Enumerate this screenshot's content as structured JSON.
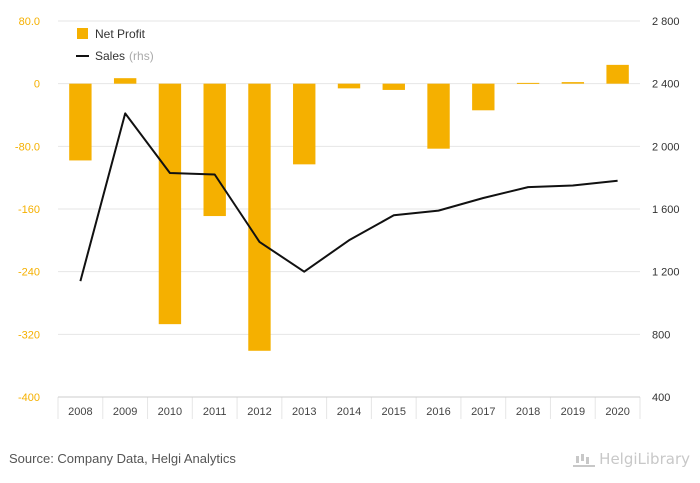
{
  "chart_data": {
    "type": "bar",
    "categories": [
      "2008",
      "2009",
      "2010",
      "2011",
      "2012",
      "2013",
      "2014",
      "2015",
      "2016",
      "2017",
      "2018",
      "2019",
      "2020"
    ],
    "series": [
      {
        "name": "Net Profit",
        "type": "bar",
        "axis": "left",
        "color": "#f5b000",
        "values": [
          -98,
          7,
          -307,
          -169,
          -341,
          -103,
          -6,
          -8,
          -83,
          -34,
          1,
          2,
          24
        ]
      },
      {
        "name": "Sales",
        "legend_suffix": "(rhs)",
        "type": "line",
        "axis": "right",
        "color": "#111111",
        "values": [
          1140,
          2210,
          1830,
          1820,
          1390,
          1200,
          1400,
          1560,
          1590,
          1670,
          1740,
          1750,
          1780
        ]
      }
    ],
    "y_left": {
      "min": -400,
      "max": 80,
      "ticks": [
        "80.0",
        "0",
        "-80.0",
        "-160",
        "-240",
        "-320",
        "-400"
      ],
      "tick_values": [
        80,
        0,
        -80,
        -160,
        -240,
        -320,
        -400
      ]
    },
    "y_right": {
      "min": 400,
      "max": 2800,
      "ticks": [
        "2 800",
        "2 400",
        "2 000",
        "1 600",
        "1 200",
        "800",
        "400"
      ],
      "tick_values": [
        2800,
        2400,
        2000,
        1600,
        1200,
        800,
        400
      ]
    },
    "grid": true,
    "legend_position": "top-left",
    "colors": {
      "bar": "#f5b000",
      "line": "#111111",
      "left_ticks": "#f5b000",
      "grid": "#e6e6e6"
    }
  },
  "footer": {
    "source": "Source: Company Data, Helgi Analytics",
    "brand": "HelgiLibrary"
  }
}
